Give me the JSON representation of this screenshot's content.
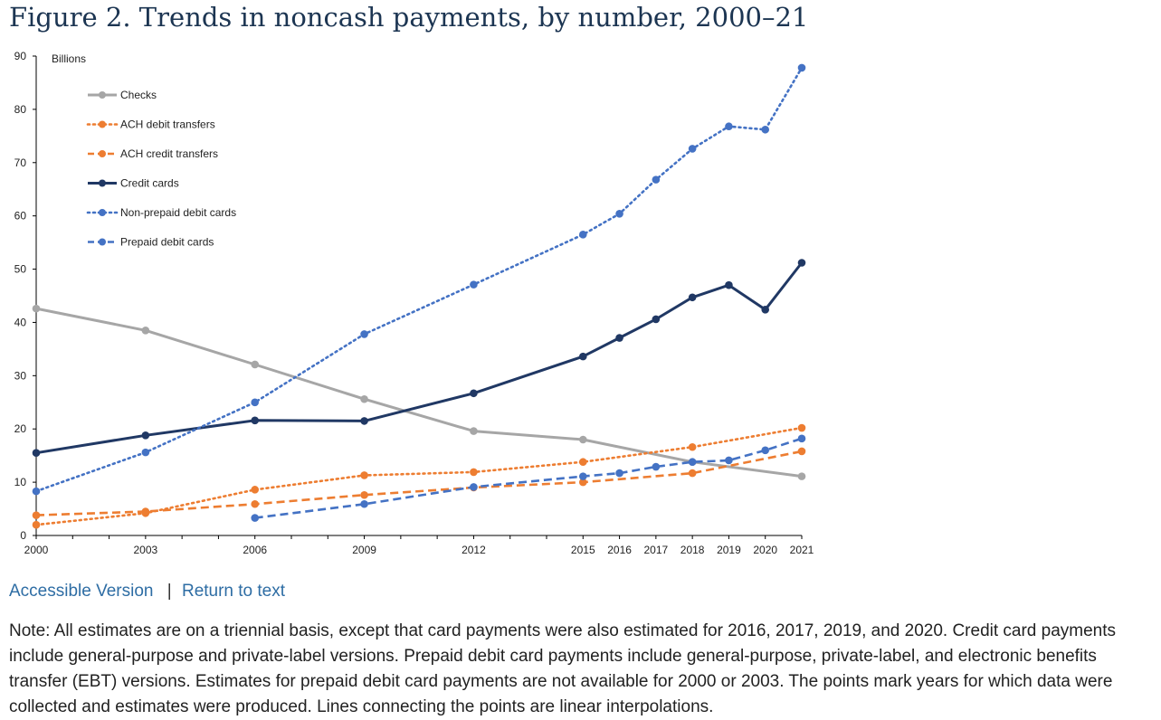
{
  "title": "Figure 2. Trends in noncash payments, by number, 2000–21",
  "links": {
    "accessible": "Accessible Version",
    "separator": "|",
    "return": "Return to text"
  },
  "note": "Note: All estimates are on a triennial basis, except that card payments were also estimated for 2016, 2017, 2019, and 2020. Credit card payments include general-purpose and private-label versions. Prepaid debit card payments include general-purpose, private-label, and electronic benefits transfer (EBT) versions. Estimates for prepaid debit card payments are not available for 2000 or 2003. The points mark years for which data were collected and estimates were produced. Lines connecting the points are linear interpolations.",
  "chart_data": {
    "type": "line",
    "title": "",
    "ylabel": "Billions",
    "xlabel": "",
    "ylim": [
      0,
      90
    ],
    "yticks": [
      0,
      10,
      20,
      30,
      40,
      50,
      60,
      70,
      80,
      90
    ],
    "xlim": [
      2000,
      2021
    ],
    "xticks": [
      2000,
      2003,
      2006,
      2009,
      2012,
      2015,
      2016,
      2017,
      2018,
      2019,
      2020,
      2021
    ],
    "legend_position": "top-left",
    "grid": false,
    "series": [
      {
        "name": "Checks",
        "color": "#a6a6a6",
        "style": "solid",
        "x": [
          2000,
          2003,
          2006,
          2009,
          2012,
          2015,
          2018,
          2021
        ],
        "values": [
          42.6,
          38.5,
          32.1,
          25.6,
          19.6,
          18.0,
          13.8,
          11.1
        ]
      },
      {
        "name": "ACH debit transfers",
        "color": "#ed7d31",
        "style": "dotted",
        "x": [
          2000,
          2003,
          2006,
          2009,
          2012,
          2015,
          2018,
          2021
        ],
        "values": [
          2.0,
          4.2,
          8.6,
          11.3,
          11.9,
          13.8,
          16.6,
          20.2
        ]
      },
      {
        "name": "ACH credit transfers",
        "color": "#ed7d31",
        "style": "dashed",
        "x": [
          2000,
          2003,
          2006,
          2009,
          2012,
          2015,
          2018,
          2021
        ],
        "values": [
          3.8,
          4.5,
          5.9,
          7.6,
          9.0,
          10.0,
          11.7,
          15.8
        ]
      },
      {
        "name": "Credit cards",
        "color": "#203864",
        "style": "solid",
        "x": [
          2000,
          2003,
          2006,
          2009,
          2012,
          2015,
          2016,
          2017,
          2018,
          2019,
          2020,
          2021
        ],
        "values": [
          15.5,
          18.8,
          21.6,
          21.5,
          26.7,
          33.6,
          37.1,
          40.6,
          44.7,
          47.0,
          42.4,
          51.2
        ]
      },
      {
        "name": "Non-prepaid debit cards",
        "color": "#4472c4",
        "style": "dotted",
        "x": [
          2000,
          2003,
          2006,
          2009,
          2012,
          2015,
          2016,
          2017,
          2018,
          2019,
          2020,
          2021
        ],
        "values": [
          8.3,
          15.6,
          25.0,
          37.8,
          47.1,
          56.5,
          60.4,
          66.8,
          72.6,
          76.8,
          76.2,
          87.8
        ]
      },
      {
        "name": "Prepaid debit cards",
        "color": "#4472c4",
        "style": "dashed",
        "x": [
          2006,
          2009,
          2012,
          2015,
          2016,
          2017,
          2018,
          2019,
          2020,
          2021
        ],
        "values": [
          3.3,
          5.9,
          9.1,
          11.1,
          11.7,
          12.9,
          13.8,
          14.1,
          16.0,
          18.2
        ]
      }
    ]
  }
}
